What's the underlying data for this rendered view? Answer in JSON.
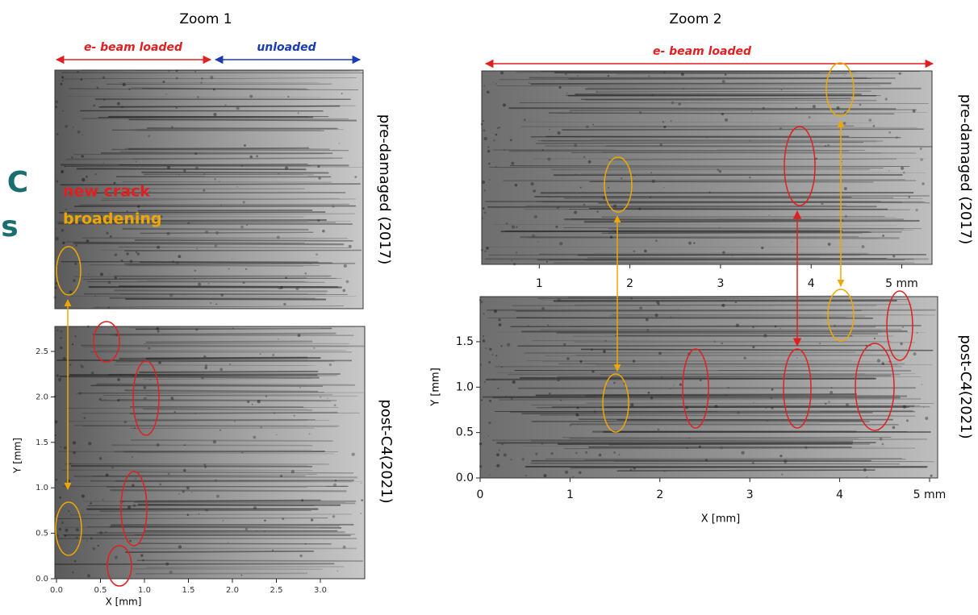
{
  "zoom1": {
    "title": "Zoom 1",
    "loaded_label": "e- beam loaded",
    "unloaded_label": "unloaded",
    "top_label": "pre-damaged (2017)",
    "bottom_label": "post-C4(2021)",
    "x_label": "X [mm]",
    "y_label": "Y [mm]",
    "xticks": [
      {
        "value": 0,
        "label": "0.0"
      },
      0.5,
      {
        "value": 1,
        "label": "1.0"
      },
      1.5,
      {
        "value": 2,
        "label": "2.0"
      },
      2.5,
      {
        "value": 3,
        "label": "3.0"
      }
    ],
    "yticks": [
      {
        "value": 0,
        "label": "0.0"
      },
      0.5,
      {
        "value": 1,
        "label": "1.0"
      },
      1.5,
      {
        "value": 2,
        "label": "2.0"
      },
      2.5
    ]
  },
  "zoom2": {
    "title": "Zoom 2",
    "loaded_label": "e- beam loaded",
    "top_label": "pre-damaged (2017)",
    "bottom_label": "post-C4(2021)",
    "x_label": "X [mm]",
    "y_label": "Y [mm]",
    "top_xticks": [
      1,
      2,
      3,
      4,
      {
        "value": 5,
        "label": "5 mm"
      }
    ],
    "xticks": [
      0,
      1,
      2,
      3,
      4,
      {
        "value": 5,
        "label": "5 mm"
      }
    ],
    "yticks": [
      {
        "value": 0,
        "label": "0.0"
      },
      0.5,
      {
        "value": 1,
        "label": "1.0"
      },
      1.5
    ]
  },
  "legend": {
    "new_crack": "new crack",
    "broadening": "broadening"
  },
  "cut_text": [
    "C",
    "s"
  ]
}
